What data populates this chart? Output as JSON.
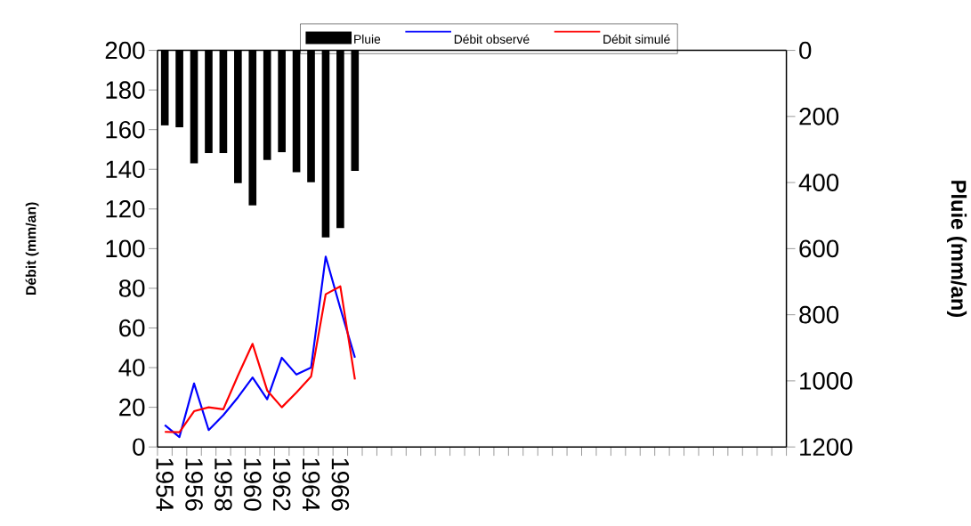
{
  "chart_data": {
    "type": "line",
    "categories": [
      "1954",
      null,
      "1956",
      null,
      "1958",
      null,
      "1960",
      null,
      "1962",
      null,
      "1964",
      null,
      "1966",
      null,
      null,
      null,
      null,
      null,
      null,
      null,
      null,
      null,
      null,
      null,
      null,
      null,
      null,
      null,
      null,
      null,
      null,
      null,
      null,
      null,
      null,
      null,
      null,
      null,
      null,
      null,
      null,
      null,
      null
    ],
    "series": [
      {
        "name": "Pluie",
        "type": "bar",
        "axis": "y2",
        "color": "#000000",
        "values": [
          227,
          233,
          342,
          311,
          311,
          402,
          469,
          332,
          308,
          369,
          399,
          566,
          538,
          365,
          null,
          null,
          null,
          null,
          null,
          null,
          null,
          null,
          null,
          null,
          null,
          null,
          null,
          null,
          null,
          null,
          null,
          null,
          null,
          null,
          null,
          null,
          null,
          null,
          null,
          null,
          null,
          null,
          null
        ]
      },
      {
        "name": "Débit observé",
        "color": "#0000ff",
        "values": [
          11,
          5,
          32,
          8.5,
          16,
          25,
          35,
          24,
          45,
          36.5,
          40,
          96,
          70,
          45,
          null,
          null,
          null,
          null,
          null,
          null,
          null,
          null,
          null,
          null,
          null,
          null,
          null,
          null,
          null,
          null,
          null,
          null,
          null,
          null,
          null,
          null,
          null,
          null,
          null,
          null,
          null,
          null,
          null
        ]
      },
      {
        "name": "Débit simulé",
        "color": "#ff0000",
        "values": [
          7.6,
          7.4,
          18,
          20,
          19,
          36,
          52,
          28.5,
          20,
          27.5,
          35.5,
          77,
          81,
          34,
          null,
          null,
          null,
          null,
          null,
          null,
          null,
          null,
          null,
          null,
          null,
          null,
          null,
          null,
          null,
          null,
          null,
          null,
          null,
          null,
          null,
          null,
          null,
          null,
          null,
          null,
          null,
          null,
          null
        ]
      }
    ],
    "ylabel": "Débit (mm/an)",
    "y2label": "Pluie (mm/an)",
    "ylim": [
      0,
      200
    ],
    "yticks": [
      0,
      20,
      40,
      60,
      80,
      100,
      120,
      140,
      160,
      180,
      200
    ],
    "y2lim": [
      1200,
      0
    ],
    "y2ticks": [
      0,
      200,
      400,
      600,
      800,
      1000,
      1200
    ],
    "legend": "top"
  }
}
